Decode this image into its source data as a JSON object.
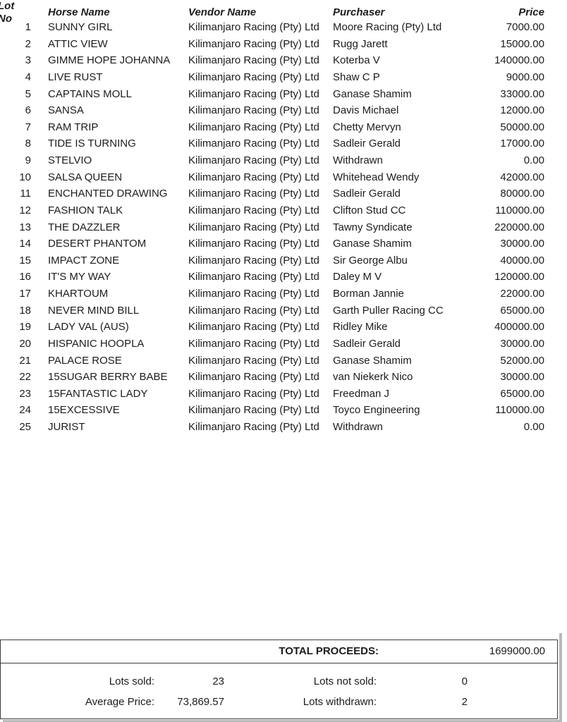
{
  "table": {
    "headers": {
      "lot": "Lot No",
      "horse": "Horse Name",
      "vendor": "Vendor Name",
      "purchaser": "Purchaser",
      "price": "Price"
    },
    "rows": [
      {
        "lot": "1",
        "horse": "SUNNY GIRL",
        "vendor": "Kilimanjaro Racing (Pty) Ltd",
        "purchaser": "Moore Racing (Pty) Ltd",
        "price": "7000.00"
      },
      {
        "lot": "2",
        "horse": "ATTIC VIEW",
        "vendor": "Kilimanjaro Racing (Pty) Ltd",
        "purchaser": "Rugg Jarett",
        "price": "15000.00"
      },
      {
        "lot": "3",
        "horse": "GIMME HOPE JOHANNA",
        "vendor": "Kilimanjaro Racing (Pty) Ltd",
        "purchaser": "Koterba V",
        "price": "140000.00"
      },
      {
        "lot": "4",
        "horse": "LIVE RUST",
        "vendor": "Kilimanjaro Racing (Pty) Ltd",
        "purchaser": "Shaw C P",
        "price": "9000.00"
      },
      {
        "lot": "5",
        "horse": "CAPTAINS MOLL",
        "vendor": "Kilimanjaro Racing (Pty) Ltd",
        "purchaser": "Ganase Shamim",
        "price": "33000.00"
      },
      {
        "lot": "6",
        "horse": "SANSA",
        "vendor": "Kilimanjaro Racing (Pty) Ltd",
        "purchaser": "Davis Michael",
        "price": "12000.00"
      },
      {
        "lot": "7",
        "horse": "RAM TRIP",
        "vendor": "Kilimanjaro Racing (Pty) Ltd",
        "purchaser": "Chetty Mervyn",
        "price": "50000.00"
      },
      {
        "lot": "8",
        "horse": "TIDE IS TURNING",
        "vendor": "Kilimanjaro Racing (Pty) Ltd",
        "purchaser": "Sadleir Gerald",
        "price": "17000.00"
      },
      {
        "lot": "9",
        "horse": "STELVIO",
        "vendor": "Kilimanjaro Racing (Pty) Ltd",
        "purchaser": "Withdrawn",
        "price": "0.00"
      },
      {
        "lot": "10",
        "horse": "SALSA QUEEN",
        "vendor": "Kilimanjaro Racing (Pty) Ltd",
        "purchaser": "Whitehead Wendy",
        "price": "42000.00"
      },
      {
        "lot": "11",
        "horse": "ENCHANTED DRAWING",
        "vendor": "Kilimanjaro Racing (Pty) Ltd",
        "purchaser": "Sadleir Gerald",
        "price": "80000.00"
      },
      {
        "lot": "12",
        "horse": "FASHION TALK",
        "vendor": "Kilimanjaro Racing (Pty) Ltd",
        "purchaser": "Clifton Stud CC",
        "price": "110000.00"
      },
      {
        "lot": "13",
        "horse": "THE DAZZLER",
        "vendor": "Kilimanjaro Racing (Pty) Ltd",
        "purchaser": "Tawny Syndicate",
        "price": "220000.00"
      },
      {
        "lot": "14",
        "horse": "DESERT PHANTOM",
        "vendor": "Kilimanjaro Racing (Pty) Ltd",
        "purchaser": "Ganase Shamim",
        "price": "30000.00"
      },
      {
        "lot": "15",
        "horse": "IMPACT ZONE",
        "vendor": "Kilimanjaro Racing (Pty) Ltd",
        "purchaser": "Sir George Albu",
        "price": "40000.00"
      },
      {
        "lot": "16",
        "horse": "IT'S MY WAY",
        "vendor": "Kilimanjaro Racing (Pty) Ltd",
        "purchaser": "Daley M V",
        "price": "120000.00"
      },
      {
        "lot": "17",
        "horse": "KHARTOUM",
        "vendor": "Kilimanjaro Racing (Pty) Ltd",
        "purchaser": "Borman Jannie",
        "price": "22000.00"
      },
      {
        "lot": "18",
        "horse": "NEVER MIND BILL",
        "vendor": "Kilimanjaro Racing (Pty) Ltd",
        "purchaser": "Garth Puller Racing CC",
        "price": "65000.00"
      },
      {
        "lot": "19",
        "horse": "LADY VAL (AUS)",
        "vendor": "Kilimanjaro Racing (Pty) Ltd",
        "purchaser": "Ridley Mike",
        "price": "400000.00"
      },
      {
        "lot": "20",
        "horse": "HISPANIC HOOPLA",
        "vendor": "Kilimanjaro Racing (Pty) Ltd",
        "purchaser": "Sadleir Gerald",
        "price": "30000.00"
      },
      {
        "lot": "21",
        "horse": "PALACE ROSE",
        "vendor": "Kilimanjaro Racing (Pty) Ltd",
        "purchaser": "Ganase Shamim",
        "price": "52000.00"
      },
      {
        "lot": "22",
        "horse": "15SUGAR BERRY BABE",
        "vendor": "Kilimanjaro Racing (Pty) Ltd",
        "purchaser": "van Niekerk Nico",
        "price": "30000.00"
      },
      {
        "lot": "23",
        "horse": "15FANTASTIC LADY",
        "vendor": "Kilimanjaro Racing (Pty) Ltd",
        "purchaser": "Freedman J",
        "price": "65000.00"
      },
      {
        "lot": "24",
        "horse": "15EXCESSIVE",
        "vendor": "Kilimanjaro Racing (Pty) Ltd",
        "purchaser": "Toyco Engineering",
        "price": "110000.00"
      },
      {
        "lot": "25",
        "horse": "JURIST",
        "vendor": "Kilimanjaro Racing (Pty) Ltd",
        "purchaser": "Withdrawn",
        "price": "0.00"
      }
    ]
  },
  "totals": {
    "label": "TOTAL PROCEEDS:",
    "value": "1699000.00"
  },
  "summary": {
    "lots_sold_label": "Lots sold:",
    "lots_sold_value": "23",
    "lots_not_sold_label": "Lots not sold:",
    "lots_not_sold_value": "0",
    "average_price_label": "Average Price:",
    "average_price_value": "73,869.57",
    "lots_withdrawn_label": "Lots withdrawn:",
    "lots_withdrawn_value": "2"
  },
  "colors": {
    "text": "#1c1c1c",
    "border": "#3c3c3c",
    "shadow": "#b9b9b9",
    "background": "#ffffff"
  }
}
